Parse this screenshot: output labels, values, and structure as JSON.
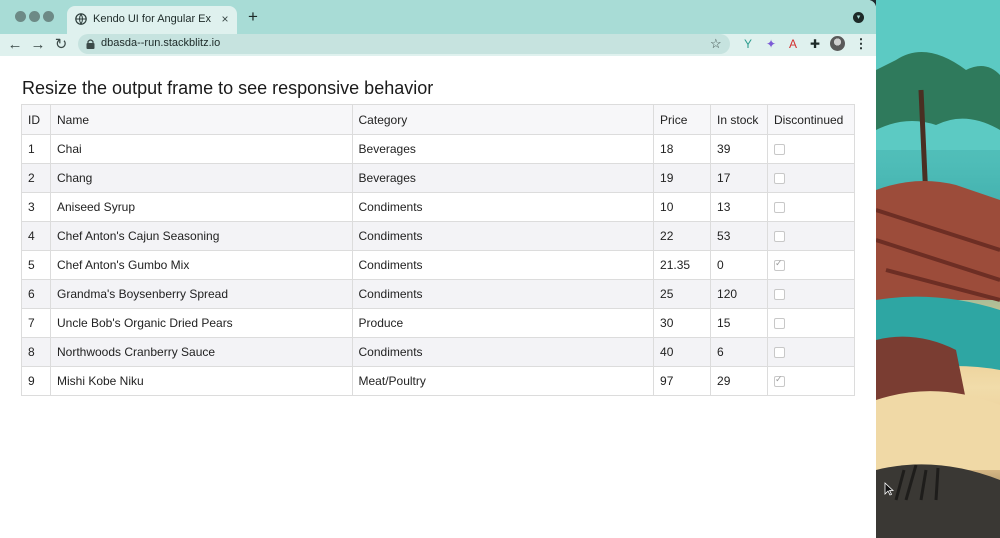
{
  "browser": {
    "tab_title": "Kendo UI for Angular Example",
    "tab_close": "×",
    "new_tab": "+",
    "url": "dbasda--run.stackblitz.io",
    "back": "←",
    "forward": "→",
    "reload": "↻",
    "bookmark": "☆",
    "menu": "⋮",
    "tab_menu": "▾",
    "extensions": [
      {
        "name": "vue-devtools-icon",
        "glyph": "Y",
        "color": "#2e9e8f"
      },
      {
        "name": "extension-purple-icon",
        "glyph": "✦",
        "color": "#7b5bd6"
      },
      {
        "name": "angular-devtools-icon",
        "glyph": "A",
        "color": "#d32f2f"
      },
      {
        "name": "extensions-puzzle-icon",
        "glyph": "✚",
        "color": "#1d2a28"
      }
    ]
  },
  "page": {
    "heading": "Resize the output frame to see responsive behavior",
    "columns": [
      "ID",
      "Name",
      "Category",
      "Price",
      "In stock",
      "Discontinued"
    ],
    "rows": [
      {
        "id": "1",
        "name": "Chai",
        "category": "Beverages",
        "price": "18",
        "stock": "39",
        "discontinued": false
      },
      {
        "id": "2",
        "name": "Chang",
        "category": "Beverages",
        "price": "19",
        "stock": "17",
        "discontinued": false
      },
      {
        "id": "3",
        "name": "Aniseed Syrup",
        "category": "Condiments",
        "price": "10",
        "stock": "13",
        "discontinued": false
      },
      {
        "id": "4",
        "name": "Chef Anton's Cajun Seasoning",
        "category": "Condiments",
        "price": "22",
        "stock": "53",
        "discontinued": false
      },
      {
        "id": "5",
        "name": "Chef Anton's Gumbo Mix",
        "category": "Condiments",
        "price": "21.35",
        "stock": "0",
        "discontinued": true
      },
      {
        "id": "6",
        "name": "Grandma's Boysenberry Spread",
        "category": "Condiments",
        "price": "25",
        "stock": "120",
        "discontinued": false
      },
      {
        "id": "7",
        "name": "Uncle Bob's Organic Dried Pears",
        "category": "Produce",
        "price": "30",
        "stock": "15",
        "discontinued": false
      },
      {
        "id": "8",
        "name": "Northwoods Cranberry Sauce",
        "category": "Condiments",
        "price": "40",
        "stock": "6",
        "discontinued": false
      },
      {
        "id": "9",
        "name": "Mishi Kobe Niku",
        "category": "Meat/Poultry",
        "price": "97",
        "stock": "29",
        "discontinued": true
      }
    ]
  },
  "colors": {
    "tab_strip": "#a8dcd6",
    "toolbar": "#dff1ee",
    "omnibox": "#c6e3df",
    "row_alt": "#f3f3f6",
    "grid_border": "#dcdcdc"
  }
}
